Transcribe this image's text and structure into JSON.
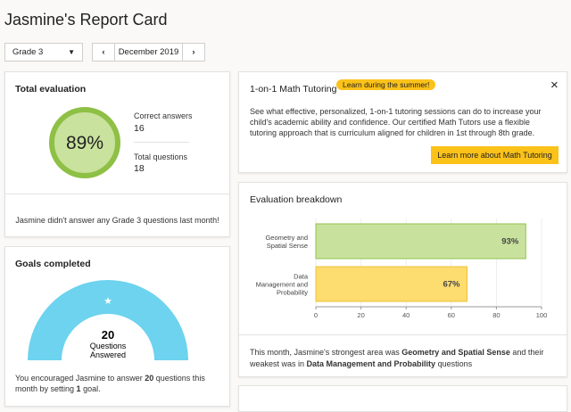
{
  "header": {
    "title": "Jasmine's Report Card",
    "grade_select": "Grade 3",
    "month": "December 2019"
  },
  "total_evaluation": {
    "title": "Total evaluation",
    "score": "89%",
    "correct_label": "Correct answers",
    "correct": 16,
    "total_label": "Total questions",
    "total": 18,
    "note": "Jasmine didn't answer any Grade 3 questions last month!"
  },
  "goals": {
    "title": "Goals completed",
    "count": 20,
    "count_label_1": "Questions",
    "count_label_2": "Answered",
    "text": [
      "You encouraged Jasmine to answer ",
      20,
      " questions this month by setting ",
      1,
      " goal."
    ]
  },
  "tutoring": {
    "title": "1-on-1 Math Tutoring",
    "badge": "Learn during the summer!",
    "close": "×",
    "body": "See what effective, personalized, 1-on-1 tutoring sessions can do to increase your child's academic ability and confidence. Our certified Math Tutors use a flexible tutoring approach that is curriculum aligned for children in 1st through 8th grade.",
    "button": "Learn more about Math Tutoring"
  },
  "chart_data": {
    "type": "bar",
    "orientation": "horizontal",
    "title": "Evaluation breakdown",
    "categories": [
      "Geometry and Spatial Sense",
      "Data Management and Probability"
    ],
    "values": [
      93,
      67
    ],
    "value_labels": [
      "93%",
      "67%"
    ],
    "colors": [
      "#c8e29d",
      "#fddc70"
    ],
    "border_colors": [
      "#93c24e",
      "#f0c232"
    ],
    "xlim": [
      0,
      100
    ],
    "xticks": [
      0,
      20,
      40,
      60,
      80,
      100
    ],
    "grid": true
  },
  "breakdown_footer": [
    "This month, Jasmine's strongest area was ",
    "Geometry and Spatial Sense",
    " and their weakest was in ",
    "Data Management and Probability",
    " questions"
  ]
}
